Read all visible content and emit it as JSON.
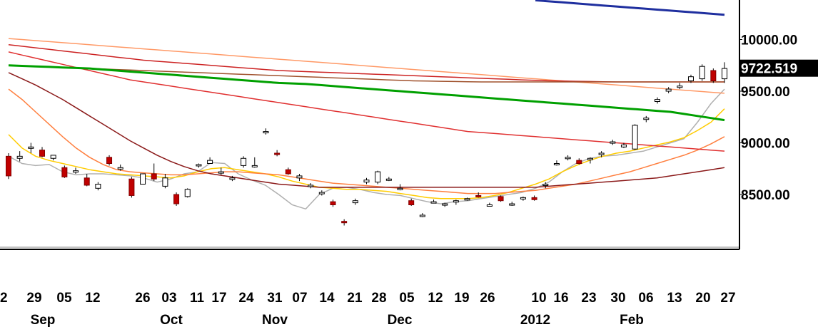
{
  "chart_data": {
    "type": "candlestick",
    "title": "",
    "xlabel": "",
    "ylabel": "",
    "ylim": [
      8050,
      10200
    ],
    "grid": false,
    "legend": "none",
    "current_value": 9722.519,
    "current_value_label": "9722.519",
    "y_ticks": [
      {
        "value": 10000,
        "label": "10000.00"
      },
      {
        "value": 9500,
        "label": "9500.00"
      },
      {
        "value": 9000,
        "label": "9000.00"
      },
      {
        "value": 8500,
        "label": "8500.00"
      }
    ],
    "x_ticks": [
      "2",
      "29",
      "05",
      "12",
      "26",
      "03",
      "11",
      "17",
      "24",
      "31",
      "07",
      "14",
      "21",
      "28",
      "05",
      "12",
      "19",
      "26",
      "10",
      "16",
      "23",
      "30",
      "06",
      "13",
      "20",
      "27"
    ],
    "month_labels": [
      "Sep",
      "Oct",
      "Nov",
      "Dec",
      "2012",
      "Feb"
    ],
    "moving_averages": [
      {
        "color": "#b0b0b0",
        "values": [
          8870,
          8800,
          8780,
          8790,
          8720,
          8690,
          8700,
          8700,
          8690,
          8680,
          8660,
          8620,
          8650,
          8700,
          8720,
          8810,
          8800,
          8700,
          8640,
          8590,
          8500,
          8400,
          8360,
          8500,
          8560,
          8570,
          8550,
          8520,
          8500,
          8490,
          8460,
          8430,
          8410,
          8430,
          8440,
          8460,
          8480,
          8500,
          8520,
          8560,
          8620,
          8720,
          8800,
          8850,
          8870,
          8880,
          8900,
          8920,
          8960,
          9000,
          9040,
          9200,
          9380,
          9520
        ]
      },
      {
        "color": "#ffcc00",
        "values": [
          9080,
          8950,
          8870,
          8830,
          8800,
          8770,
          8740,
          8720,
          8700,
          8690,
          8680,
          8670,
          8660,
          8680,
          8720,
          8750,
          8760,
          8740,
          8720,
          8700,
          8670,
          8630,
          8600,
          8570,
          8560,
          8550,
          8550,
          8540,
          8530,
          8510,
          8490,
          8470,
          8460,
          8460,
          8460,
          8470,
          8490,
          8520,
          8560,
          8600,
          8650,
          8720,
          8780,
          8830,
          8870,
          8900,
          8920,
          8950,
          8980,
          9010,
          9050,
          9120,
          9200,
          9330
        ]
      },
      {
        "color": "#ff7f3f",
        "values": [
          9520,
          9420,
          9300,
          9180,
          9060,
          8950,
          8860,
          8790,
          8740,
          8720,
          8710,
          8700,
          8690,
          8690,
          8700,
          8710,
          8720,
          8720,
          8710,
          8700,
          8690,
          8670,
          8650,
          8630,
          8610,
          8600,
          8590,
          8580,
          8570,
          8560,
          8550,
          8540,
          8530,
          8520,
          8510,
          8510,
          8510,
          8520,
          8530,
          8540,
          8560,
          8580,
          8600,
          8630,
          8660,
          8690,
          8720,
          8760,
          8800,
          8840,
          8880,
          8930,
          8990,
          9060
        ]
      },
      {
        "color": "#8b1a1a",
        "values": [
          9680,
          9620,
          9560,
          9490,
          9420,
          9340,
          9260,
          9180,
          9100,
          9020,
          8950,
          8880,
          8820,
          8770,
          8730,
          8700,
          8680,
          8660,
          8640,
          8620,
          8600,
          8590,
          8580,
          8570,
          8570,
          8570,
          8570,
          8570,
          8570,
          8570,
          8570,
          8570,
          8570,
          8570,
          8570,
          8570,
          8570,
          8570,
          8570,
          8570,
          8580,
          8590,
          8600,
          8610,
          8620,
          8630,
          8640,
          8650,
          8660,
          8680,
          8700,
          8720,
          8740,
          8760
        ]
      },
      {
        "color": "#e03030",
        "values": [
          9880,
          9850,
          9820,
          9790,
          9760,
          9730,
          9700,
          9670,
          9640,
          9610,
          9590,
          9570,
          9550,
          9530,
          9510,
          9490,
          9470,
          9450,
          9430,
          9410,
          9390,
          9370,
          9350,
          9330,
          9310,
          9290,
          9270,
          9250,
          9230,
          9210,
          9190,
          9170,
          9150,
          9130,
          9110,
          9100,
          9090,
          9080,
          9070,
          9060,
          9050,
          9040,
          9030,
          9020,
          9010,
          9000,
          8990,
          8980,
          8970,
          8960,
          8950,
          8940,
          8930,
          8920
        ]
      },
      {
        "color": "#ff9966",
        "values": [
          10010,
          10000,
          9990,
          9980,
          9970,
          9960,
          9950,
          9940,
          9930,
          9920,
          9910,
          9900,
          9890,
          9880,
          9870,
          9860,
          9850,
          9840,
          9830,
          9820,
          9810,
          9800,
          9790,
          9780,
          9770,
          9760,
          9750,
          9740,
          9730,
          9720,
          9710,
          9700,
          9690,
          9680,
          9670,
          9660,
          9650,
          9640,
          9630,
          9620,
          9610,
          9600,
          9590,
          9580,
          9570,
          9560,
          9550,
          9540,
          9530,
          9520,
          9510,
          9500,
          9490,
          9480
        ]
      },
      {
        "color": "#cc2222",
        "values": [
          9950,
          9935,
          9920,
          9905,
          9890,
          9875,
          9860,
          9845,
          9830,
          9815,
          9800,
          9790,
          9780,
          9770,
          9760,
          9750,
          9740,
          9730,
          9720,
          9710,
          9700,
          9695,
          9690,
          9685,
          9680,
          9675,
          9670,
          9665,
          9660,
          9655,
          9650,
          9645,
          9640,
          9635,
          9630,
          9625,
          9620,
          9615,
          9610,
          9605,
          9600,
          9598,
          9596,
          9594,
          9592,
          9590,
          9590,
          9590,
          9590,
          9590,
          9590,
          9590,
          9590,
          9590
        ]
      },
      {
        "color": "#a0522d",
        "values": [
          9750,
          9745,
          9740,
          9735,
          9730,
          9725,
          9720,
          9715,
          9710,
          9705,
          9700,
          9695,
          9690,
          9685,
          9680,
          9675,
          9670,
          9665,
          9660,
          9655,
          9650,
          9645,
          9640,
          9635,
          9630,
          9625,
          9620,
          9615,
          9610,
          9605,
          9600,
          9598,
          9596,
          9594,
          9592,
          9590,
          9590,
          9590,
          9590,
          9590,
          9590,
          9590,
          9590,
          9590,
          9590,
          9590,
          9590,
          9590,
          9590,
          9590,
          9590,
          9590,
          9590,
          9590
        ]
      },
      {
        "color": "#00a000",
        "values": [
          9750,
          9745,
          9740,
          9735,
          9730,
          9725,
          9720,
          9710,
          9700,
          9690,
          9680,
          9670,
          9660,
          9650,
          9640,
          9630,
          9620,
          9610,
          9600,
          9590,
          9580,
          9575,
          9570,
          9560,
          9550,
          9540,
          9530,
          9520,
          9510,
          9500,
          9490,
          9480,
          9470,
          9460,
          9450,
          9440,
          9430,
          9420,
          9410,
          9400,
          9390,
          9380,
          9370,
          9360,
          9350,
          9340,
          9330,
          9320,
          9310,
          9300,
          9280,
          9260,
          9240,
          9220
        ]
      },
      {
        "color": "#1f2f9f",
        "values": [
          null,
          null,
          null,
          null,
          null,
          null,
          null,
          null,
          null,
          null,
          null,
          null,
          null,
          null,
          null,
          null,
          null,
          null,
          null,
          null,
          null,
          null,
          null,
          null,
          null,
          null,
          null,
          null,
          null,
          null,
          null,
          null,
          null,
          null,
          null,
          null,
          null,
          null,
          null,
          10380,
          10370,
          10360,
          10350,
          10340,
          10330,
          10320,
          10310,
          10300,
          10290,
          10280,
          10270,
          10260,
          10250,
          10240
        ]
      }
    ],
    "candles": [
      {
        "o": 8870,
        "h": 8900,
        "l": 8650,
        "c": 8680
      },
      {
        "o": 8850,
        "h": 8920,
        "l": 8820,
        "c": 8870
      },
      {
        "o": 8960,
        "h": 9000,
        "l": 8900,
        "c": 8960
      },
      {
        "o": 8930,
        "h": 8960,
        "l": 8860,
        "c": 8870
      },
      {
        "o": 8850,
        "h": 8880,
        "l": 8830,
        "c": 8880
      },
      {
        "o": 8760,
        "h": 8780,
        "l": 8660,
        "c": 8670
      },
      {
        "o": 8720,
        "h": 8760,
        "l": 8700,
        "c": 8730
      },
      {
        "o": 8660,
        "h": 8700,
        "l": 8580,
        "c": 8590
      },
      {
        "o": 8560,
        "h": 8620,
        "l": 8540,
        "c": 8600
      },
      {
        "o": 8860,
        "h": 8880,
        "l": 8780,
        "c": 8800
      },
      {
        "o": 8760,
        "h": 8790,
        "l": 8730,
        "c": 8760
      },
      {
        "o": 8650,
        "h": 8670,
        "l": 8470,
        "c": 8490
      },
      {
        "o": 8600,
        "h": 8700,
        "l": 8600,
        "c": 8700
      },
      {
        "o": 8700,
        "h": 8800,
        "l": 8630,
        "c": 8650
      },
      {
        "o": 8580,
        "h": 8700,
        "l": 8560,
        "c": 8660
      },
      {
        "o": 8500,
        "h": 8520,
        "l": 8390,
        "c": 8410
      },
      {
        "o": 8480,
        "h": 8560,
        "l": 8470,
        "c": 8550
      },
      {
        "o": 8790,
        "h": 8800,
        "l": 8760,
        "c": 8790
      },
      {
        "o": 8800,
        "h": 8860,
        "l": 8800,
        "c": 8830
      },
      {
        "o": 8720,
        "h": 8760,
        "l": 8690,
        "c": 8720
      },
      {
        "o": 8660,
        "h": 8680,
        "l": 8630,
        "c": 8660
      },
      {
        "o": 8780,
        "h": 8870,
        "l": 8760,
        "c": 8850
      },
      {
        "o": 8780,
        "h": 8860,
        "l": 8760,
        "c": 8780
      },
      {
        "o": 9110,
        "h": 9140,
        "l": 9080,
        "c": 9110
      },
      {
        "o": 8900,
        "h": 8930,
        "l": 8870,
        "c": 8890
      },
      {
        "o": 8740,
        "h": 8760,
        "l": 8690,
        "c": 8700
      },
      {
        "o": 8660,
        "h": 8700,
        "l": 8630,
        "c": 8680
      },
      {
        "o": 8590,
        "h": 8610,
        "l": 8560,
        "c": 8590
      },
      {
        "o": 8520,
        "h": 8540,
        "l": 8490,
        "c": 8520
      },
      {
        "o": 8430,
        "h": 8450,
        "l": 8380,
        "c": 8400
      },
      {
        "o": 8240,
        "h": 8260,
        "l": 8200,
        "c": 8230
      },
      {
        "o": 8420,
        "h": 8460,
        "l": 8400,
        "c": 8440
      },
      {
        "o": 8620,
        "h": 8660,
        "l": 8600,
        "c": 8640
      },
      {
        "o": 8620,
        "h": 8730,
        "l": 8600,
        "c": 8720
      },
      {
        "o": 8650,
        "h": 8670,
        "l": 8630,
        "c": 8650
      },
      {
        "o": 8560,
        "h": 8600,
        "l": 8540,
        "c": 8560
      },
      {
        "o": 8440,
        "h": 8460,
        "l": 8390,
        "c": 8400
      },
      {
        "o": 8300,
        "h": 8320,
        "l": 8280,
        "c": 8300
      },
      {
        "o": 8430,
        "h": 8450,
        "l": 8420,
        "c": 8430
      },
      {
        "o": 8400,
        "h": 8420,
        "l": 8380,
        "c": 8410
      },
      {
        "o": 8430,
        "h": 8450,
        "l": 8400,
        "c": 8440
      },
      {
        "o": 8460,
        "h": 8470,
        "l": 8440,
        "c": 8460
      },
      {
        "o": 8490,
        "h": 8520,
        "l": 8470,
        "c": 8480
      },
      {
        "o": 8400,
        "h": 8420,
        "l": 8390,
        "c": 8400
      },
      {
        "o": 8480,
        "h": 8490,
        "l": 8430,
        "c": 8440
      },
      {
        "o": 8410,
        "h": 8430,
        "l": 8390,
        "c": 8410
      },
      {
        "o": 8460,
        "h": 8480,
        "l": 8440,
        "c": 8470
      },
      {
        "o": 8470,
        "h": 8490,
        "l": 8440,
        "c": 8450
      },
      {
        "o": 8590,
        "h": 8620,
        "l": 8560,
        "c": 8600
      },
      {
        "o": 8800,
        "h": 8830,
        "l": 8780,
        "c": 8800
      },
      {
        "o": 8850,
        "h": 8880,
        "l": 8830,
        "c": 8860
      },
      {
        "o": 8830,
        "h": 8850,
        "l": 8790,
        "c": 8800
      },
      {
        "o": 8840,
        "h": 8860,
        "l": 8800,
        "c": 8850
      },
      {
        "o": 8890,
        "h": 8920,
        "l": 8860,
        "c": 8900
      },
      {
        "o": 9000,
        "h": 9030,
        "l": 8980,
        "c": 9010
      },
      {
        "o": 8960,
        "h": 9000,
        "l": 8950,
        "c": 8980
      },
      {
        "o": 8940,
        "h": 9180,
        "l": 8930,
        "c": 9170
      },
      {
        "o": 9230,
        "h": 9260,
        "l": 9200,
        "c": 9240
      },
      {
        "o": 9400,
        "h": 9440,
        "l": 9380,
        "c": 9420
      },
      {
        "o": 9500,
        "h": 9540,
        "l": 9480,
        "c": 9520
      },
      {
        "o": 9540,
        "h": 9580,
        "l": 9520,
        "c": 9550
      },
      {
        "o": 9600,
        "h": 9660,
        "l": 9580,
        "c": 9640
      },
      {
        "o": 9620,
        "h": 9760,
        "l": 9600,
        "c": 9740
      },
      {
        "o": 9700,
        "h": 9720,
        "l": 9580,
        "c": 9600
      },
      {
        "o": 9620,
        "h": 9780,
        "l": 9580,
        "c": 9720
      }
    ]
  }
}
